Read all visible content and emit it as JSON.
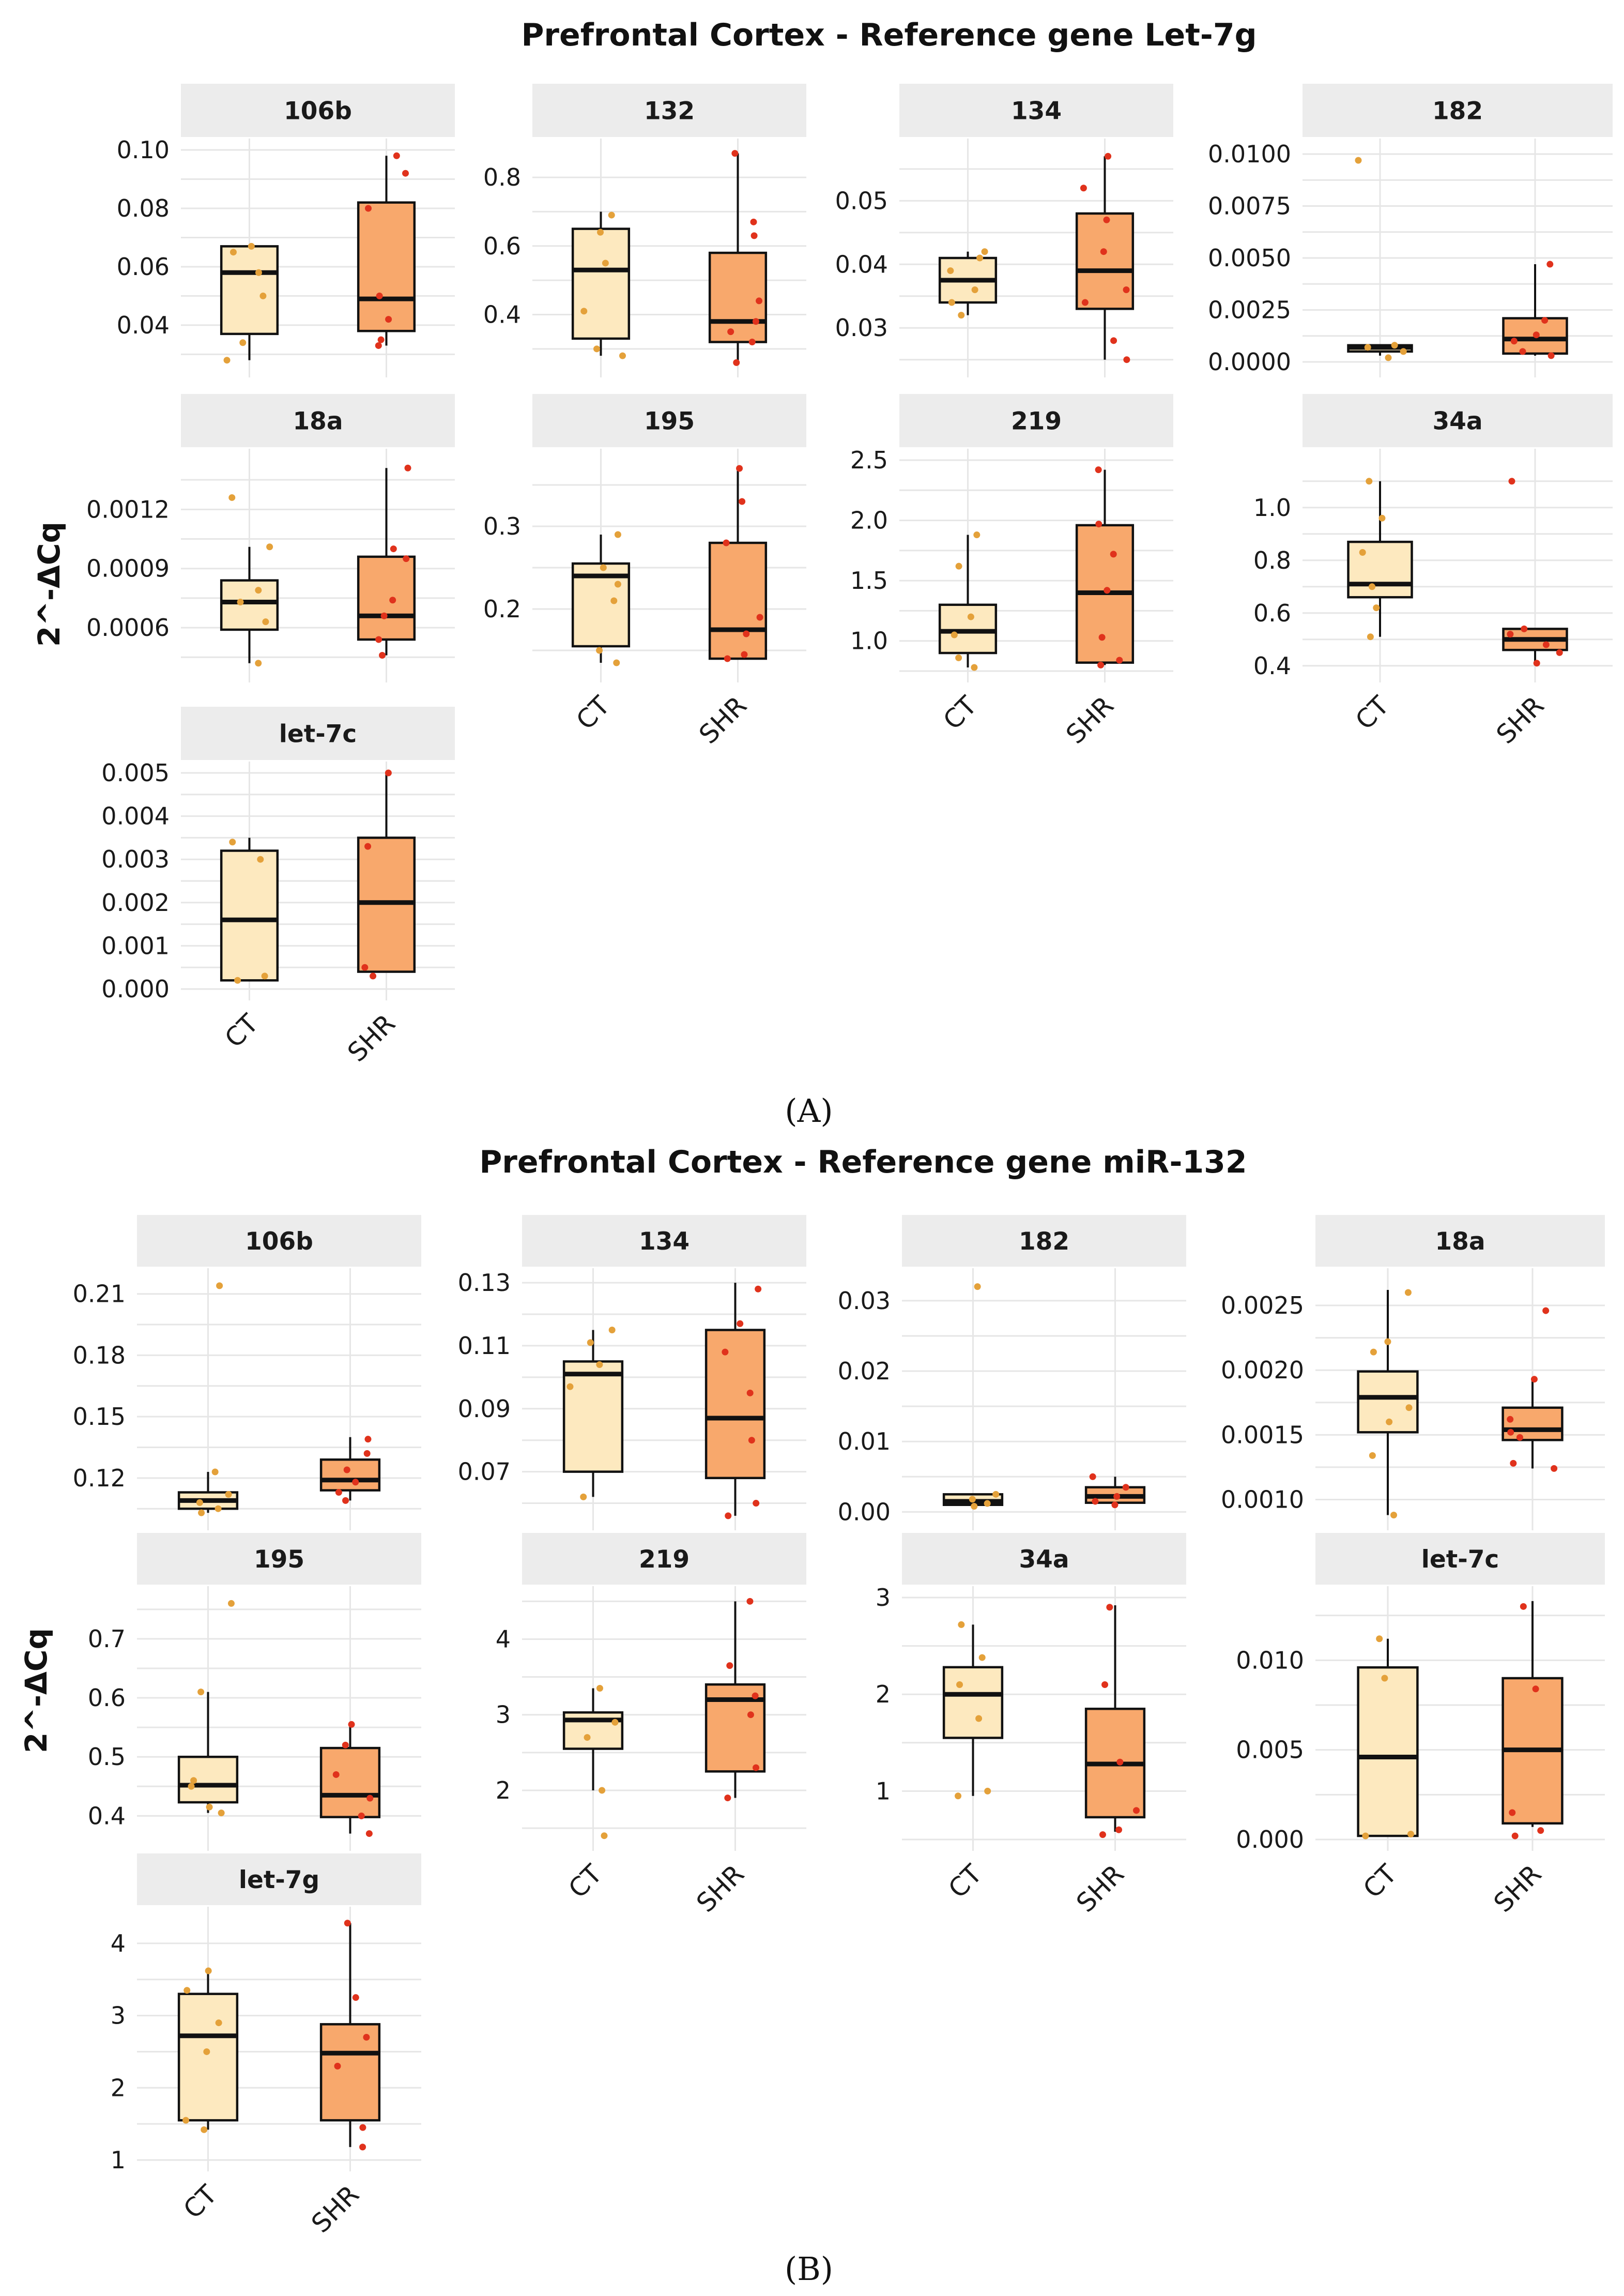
{
  "chart_data": [
    {
      "type": "boxplot",
      "panel_label": "(A)",
      "title": "Prefrontal Cortex - Reference gene Let-7g",
      "ylabel": "2^-ΔCq",
      "groups": [
        "CT",
        "SHR"
      ],
      "colors": {
        "CT": "#fde9bf",
        "SHR": "#f8a86c",
        "CT_points": "#e4a13a",
        "SHR_points": "#e0321c"
      },
      "facets": [
        {
          "name": "106b",
          "ylim": [
            0.026,
            0.1
          ],
          "yticks": [
            "0.04",
            "0.06",
            "0.08",
            "0.10"
          ],
          "boxes": [
            {
              "min": 0.028,
              "q1": 0.037,
              "median": 0.058,
              "q3": 0.067,
              "max": 0.067
            },
            {
              "min": 0.033,
              "q1": 0.038,
              "median": 0.049,
              "q3": 0.082,
              "max": 0.098
            }
          ],
          "points": [
            [
              0.028,
              0.034,
              0.05,
              0.058,
              0.065,
              0.067
            ],
            [
              0.033,
              0.035,
              0.042,
              0.05,
              0.08,
              0.092,
              0.098
            ]
          ]
        },
        {
          "name": "132",
          "ylim": [
            0.25,
            0.88
          ],
          "yticks": [
            "0.4",
            "0.6",
            "0.8"
          ],
          "boxes": [
            {
              "min": 0.28,
              "q1": 0.33,
              "median": 0.53,
              "q3": 0.65,
              "max": 0.7
            },
            {
              "min": 0.26,
              "q1": 0.32,
              "median": 0.38,
              "q3": 0.58,
              "max": 0.87
            }
          ],
          "points": [
            [
              0.28,
              0.3,
              0.41,
              0.55,
              0.64,
              0.69
            ],
            [
              0.26,
              0.32,
              0.35,
              0.38,
              0.44,
              0.63,
              0.67,
              0.87
            ]
          ]
        },
        {
          "name": "134",
          "ylim": [
            0.024,
            0.058
          ],
          "yticks": [
            "0.03",
            "0.04",
            "0.05"
          ],
          "boxes": [
            {
              "min": 0.032,
              "q1": 0.034,
              "median": 0.0375,
              "q3": 0.041,
              "max": 0.042
            },
            {
              "min": 0.025,
              "q1": 0.033,
              "median": 0.039,
              "q3": 0.048,
              "max": 0.057
            }
          ],
          "points": [
            [
              0.032,
              0.034,
              0.036,
              0.039,
              0.041,
              0.042
            ],
            [
              0.025,
              0.028,
              0.034,
              0.036,
              0.042,
              0.047,
              0.052,
              0.057
            ]
          ]
        },
        {
          "name": "182",
          "ylim": [
            -0.0002,
            0.0102
          ],
          "yticks": [
            "0.0000",
            "0.0025",
            "0.0050",
            "0.0075",
            "0.0100"
          ],
          "boxes": [
            {
              "min": 0.0003,
              "q1": 0.0005,
              "median": 0.0007,
              "q3": 0.0008,
              "max": 0.0008
            },
            {
              "min": 0.0003,
              "q1": 0.0004,
              "median": 0.0011,
              "q3": 0.0021,
              "max": 0.0047
            }
          ],
          "points": [
            [
              0.0002,
              0.0005,
              0.0007,
              0.0008,
              0.0097
            ],
            [
              0.0003,
              0.0005,
              0.001,
              0.0013,
              0.002,
              0.0047
            ]
          ]
        },
        {
          "name": "18a",
          "ylim": [
            0.00038,
            0.00145
          ],
          "yticks": [
            "0.0006",
            "0.0009",
            "0.0012"
          ],
          "boxes": [
            {
              "min": 0.00042,
              "q1": 0.00059,
              "median": 0.00073,
              "q3": 0.00084,
              "max": 0.00101
            },
            {
              "min": 0.00046,
              "q1": 0.00054,
              "median": 0.00066,
              "q3": 0.00096,
              "max": 0.00141
            }
          ],
          "points": [
            [
              0.00042,
              0.00063,
              0.00073,
              0.00079,
              0.00101,
              0.00126
            ],
            [
              0.00046,
              0.00054,
              0.00066,
              0.00074,
              0.00095,
              0.001,
              0.00141
            ]
          ]
        },
        {
          "name": "195",
          "ylim": [
            0.125,
            0.38
          ],
          "yticks": [
            "0.2",
            "0.3"
          ],
          "boxes": [
            {
              "min": 0.135,
              "q1": 0.155,
              "median": 0.24,
              "q3": 0.255,
              "max": 0.29
            },
            {
              "min": 0.14,
              "q1": 0.14,
              "median": 0.175,
              "q3": 0.28,
              "max": 0.37
            }
          ],
          "points": [
            [
              0.135,
              0.15,
              0.21,
              0.23,
              0.25,
              0.29
            ],
            [
              0.14,
              0.145,
              0.17,
              0.19,
              0.28,
              0.33,
              0.37
            ]
          ]
        },
        {
          "name": "219",
          "ylim": [
            0.75,
            2.5
          ],
          "yticks": [
            "1.0",
            "1.5",
            "2.0",
            "2.5"
          ],
          "boxes": [
            {
              "min": 0.78,
              "q1": 0.9,
              "median": 1.08,
              "q3": 1.3,
              "max": 1.88
            },
            {
              "min": 0.8,
              "q1": 0.82,
              "median": 1.4,
              "q3": 1.96,
              "max": 2.42
            }
          ],
          "points": [
            [
              0.78,
              0.86,
              1.05,
              1.2,
              1.62,
              1.88
            ],
            [
              0.8,
              0.84,
              1.03,
              1.42,
              1.72,
              1.97,
              2.42
            ]
          ]
        },
        {
          "name": "34a",
          "ylim": [
            0.38,
            1.18
          ],
          "yticks": [
            "0.4",
            "0.6",
            "0.8",
            "1.0"
          ],
          "boxes": [
            {
              "min": 0.51,
              "q1": 0.66,
              "median": 0.71,
              "q3": 0.87,
              "max": 1.1
            },
            {
              "min": 0.41,
              "q1": 0.46,
              "median": 0.5,
              "q3": 0.54,
              "max": 0.54
            }
          ],
          "points": [
            [
              0.51,
              0.62,
              0.7,
              0.83,
              0.96,
              1.1
            ],
            [
              0.41,
              0.45,
              0.48,
              0.52,
              0.54,
              1.1
            ]
          ]
        },
        {
          "name": "let-7c",
          "ylim": [
            0.0,
            0.005
          ],
          "yticks": [
            "0.000",
            "0.001",
            "0.002",
            "0.003",
            "0.004",
            "0.005"
          ],
          "boxes": [
            {
              "min": 0.0002,
              "q1": 0.0002,
              "median": 0.0016,
              "q3": 0.0032,
              "max": 0.0035
            },
            {
              "min": 0.0004,
              "q1": 0.0004,
              "median": 0.002,
              "q3": 0.0035,
              "max": 0.005
            }
          ],
          "points": [
            [
              0.0002,
              0.0003,
              0.003,
              0.0034
            ],
            [
              0.0003,
              0.0005,
              0.0033,
              0.005
            ]
          ]
        }
      ]
    },
    {
      "type": "boxplot",
      "panel_label": "(B)",
      "title": "Prefrontal Cortex - Reference gene miR-132",
      "ylabel": "2^-ΔCq",
      "groups": [
        "CT",
        "SHR"
      ],
      "colors": {
        "CT": "#fde9bf",
        "SHR": "#f8a86c",
        "CT_points": "#e4a13a",
        "SHR_points": "#e0321c"
      },
      "facets": [
        {
          "name": "106b",
          "ylim": [
            0.1,
            0.217
          ],
          "yticks": [
            "0.12",
            "0.15",
            "0.18",
            "0.21"
          ],
          "boxes": [
            {
              "min": 0.103,
              "q1": 0.105,
              "median": 0.109,
              "q3": 0.113,
              "max": 0.123
            },
            {
              "min": 0.109,
              "q1": 0.114,
              "median": 0.119,
              "q3": 0.129,
              "max": 0.14
            }
          ],
          "points": [
            [
              0.103,
              0.105,
              0.108,
              0.112,
              0.123,
              0.214
            ],
            [
              0.109,
              0.113,
              0.118,
              0.124,
              0.132,
              0.139
            ]
          ]
        },
        {
          "name": "134",
          "ylim": [
            0.055,
            0.131
          ],
          "yticks": [
            "0.07",
            "0.09",
            "0.11",
            "0.13"
          ],
          "boxes": [
            {
              "min": 0.062,
              "q1": 0.07,
              "median": 0.101,
              "q3": 0.105,
              "max": 0.115
            },
            {
              "min": 0.056,
              "q1": 0.068,
              "median": 0.087,
              "q3": 0.115,
              "max": 0.13
            }
          ],
          "points": [
            [
              0.062,
              0.097,
              0.104,
              0.111,
              0.115
            ],
            [
              0.056,
              0.06,
              0.08,
              0.095,
              0.108,
              0.117,
              0.128
            ]
          ]
        },
        {
          "name": "182",
          "ylim": [
            -0.001,
            0.033
          ],
          "yticks": [
            "0.00",
            "0.01",
            "0.02",
            "0.03"
          ],
          "boxes": [
            {
              "min": 0.0008,
              "q1": 0.001,
              "median": 0.0015,
              "q3": 0.0025,
              "max": 0.0025
            },
            {
              "min": 0.001,
              "q1": 0.0013,
              "median": 0.0022,
              "q3": 0.0035,
              "max": 0.005
            }
          ],
          "points": [
            [
              0.0008,
              0.0012,
              0.0018,
              0.0025,
              0.032
            ],
            [
              0.001,
              0.0015,
              0.0022,
              0.0035,
              0.005
            ]
          ]
        },
        {
          "name": "18a",
          "ylim": [
            0.00085,
            0.0027
          ],
          "yticks": [
            "0.0010",
            "0.0015",
            "0.0020",
            "0.0025"
          ],
          "boxes": [
            {
              "min": 0.00088,
              "q1": 0.00152,
              "median": 0.00179,
              "q3": 0.00199,
              "max": 0.00262
            },
            {
              "min": 0.00124,
              "q1": 0.00146,
              "median": 0.00154,
              "q3": 0.00171,
              "max": 0.00194
            }
          ],
          "points": [
            [
              0.00088,
              0.00134,
              0.0016,
              0.00171,
              0.00214,
              0.00222,
              0.0026
            ],
            [
              0.00124,
              0.00128,
              0.00148,
              0.00152,
              0.00162,
              0.00193,
              0.00246
            ]
          ]
        },
        {
          "name": "195",
          "ylim": [
            0.36,
            0.77
          ],
          "yticks": [
            "0.4",
            "0.5",
            "0.6",
            "0.7"
          ],
          "boxes": [
            {
              "min": 0.405,
              "q1": 0.423,
              "median": 0.452,
              "q3": 0.5,
              "max": 0.61
            },
            {
              "min": 0.37,
              "q1": 0.398,
              "median": 0.435,
              "q3": 0.515,
              "max": 0.555
            }
          ],
          "points": [
            [
              0.405,
              0.415,
              0.45,
              0.46,
              0.61,
              0.76
            ],
            [
              0.37,
              0.4,
              0.43,
              0.47,
              0.52,
              0.555
            ]
          ]
        },
        {
          "name": "219",
          "ylim": [
            1.35,
            4.55
          ],
          "yticks": [
            "2",
            "3",
            "4"
          ],
          "boxes": [
            {
              "min": 2.0,
              "q1": 2.55,
              "median": 2.93,
              "q3": 3.03,
              "max": 3.35
            },
            {
              "min": 1.9,
              "q1": 2.25,
              "median": 3.2,
              "q3": 3.4,
              "max": 4.5
            }
          ],
          "points": [
            [
              1.4,
              2.0,
              2.7,
              2.9,
              3.35
            ],
            [
              1.9,
              2.3,
              3.0,
              3.25,
              3.65,
              4.5
            ]
          ]
        },
        {
          "name": "34a",
          "ylim": [
            0.5,
            3.0
          ],
          "yticks": [
            "1",
            "2",
            "3"
          ],
          "boxes": [
            {
              "min": 0.95,
              "q1": 1.55,
              "median": 2.0,
              "q3": 2.28,
              "max": 2.72
            },
            {
              "min": 0.58,
              "q1": 0.73,
              "median": 1.28,
              "q3": 1.85,
              "max": 2.92
            }
          ],
          "points": [
            [
              0.95,
              1.0,
              1.75,
              2.1,
              2.38,
              2.72
            ],
            [
              0.55,
              0.6,
              0.8,
              1.3,
              2.1,
              2.9
            ]
          ]
        },
        {
          "name": "let-7c",
          "ylim": [
            0.0,
            0.0135
          ],
          "yticks": [
            "0.000",
            "0.005",
            "0.010"
          ],
          "boxes": [
            {
              "min": 0.0002,
              "q1": 0.0002,
              "median": 0.0046,
              "q3": 0.0096,
              "max": 0.0112
            },
            {
              "min": 0.0007,
              "q1": 0.0009,
              "median": 0.005,
              "q3": 0.009,
              "max": 0.0133
            }
          ],
          "points": [
            [
              0.0002,
              0.0003,
              0.009,
              0.0112
            ],
            [
              0.0002,
              0.0005,
              0.0015,
              0.0084,
              0.013
            ]
          ]
        },
        {
          "name": "let-7g",
          "ylim": [
            1.0,
            4.35
          ],
          "yticks": [
            "1",
            "2",
            "3",
            "4"
          ],
          "boxes": [
            {
              "min": 1.42,
              "q1": 1.55,
              "median": 2.72,
              "q3": 3.3,
              "max": 3.62
            },
            {
              "min": 1.18,
              "q1": 1.55,
              "median": 2.48,
              "q3": 2.88,
              "max": 4.28
            }
          ],
          "points": [
            [
              1.42,
              1.55,
              2.5,
              2.9,
              3.35,
              3.62
            ],
            [
              1.18,
              1.45,
              2.3,
              2.7,
              3.25,
              4.28
            ]
          ]
        }
      ]
    }
  ]
}
